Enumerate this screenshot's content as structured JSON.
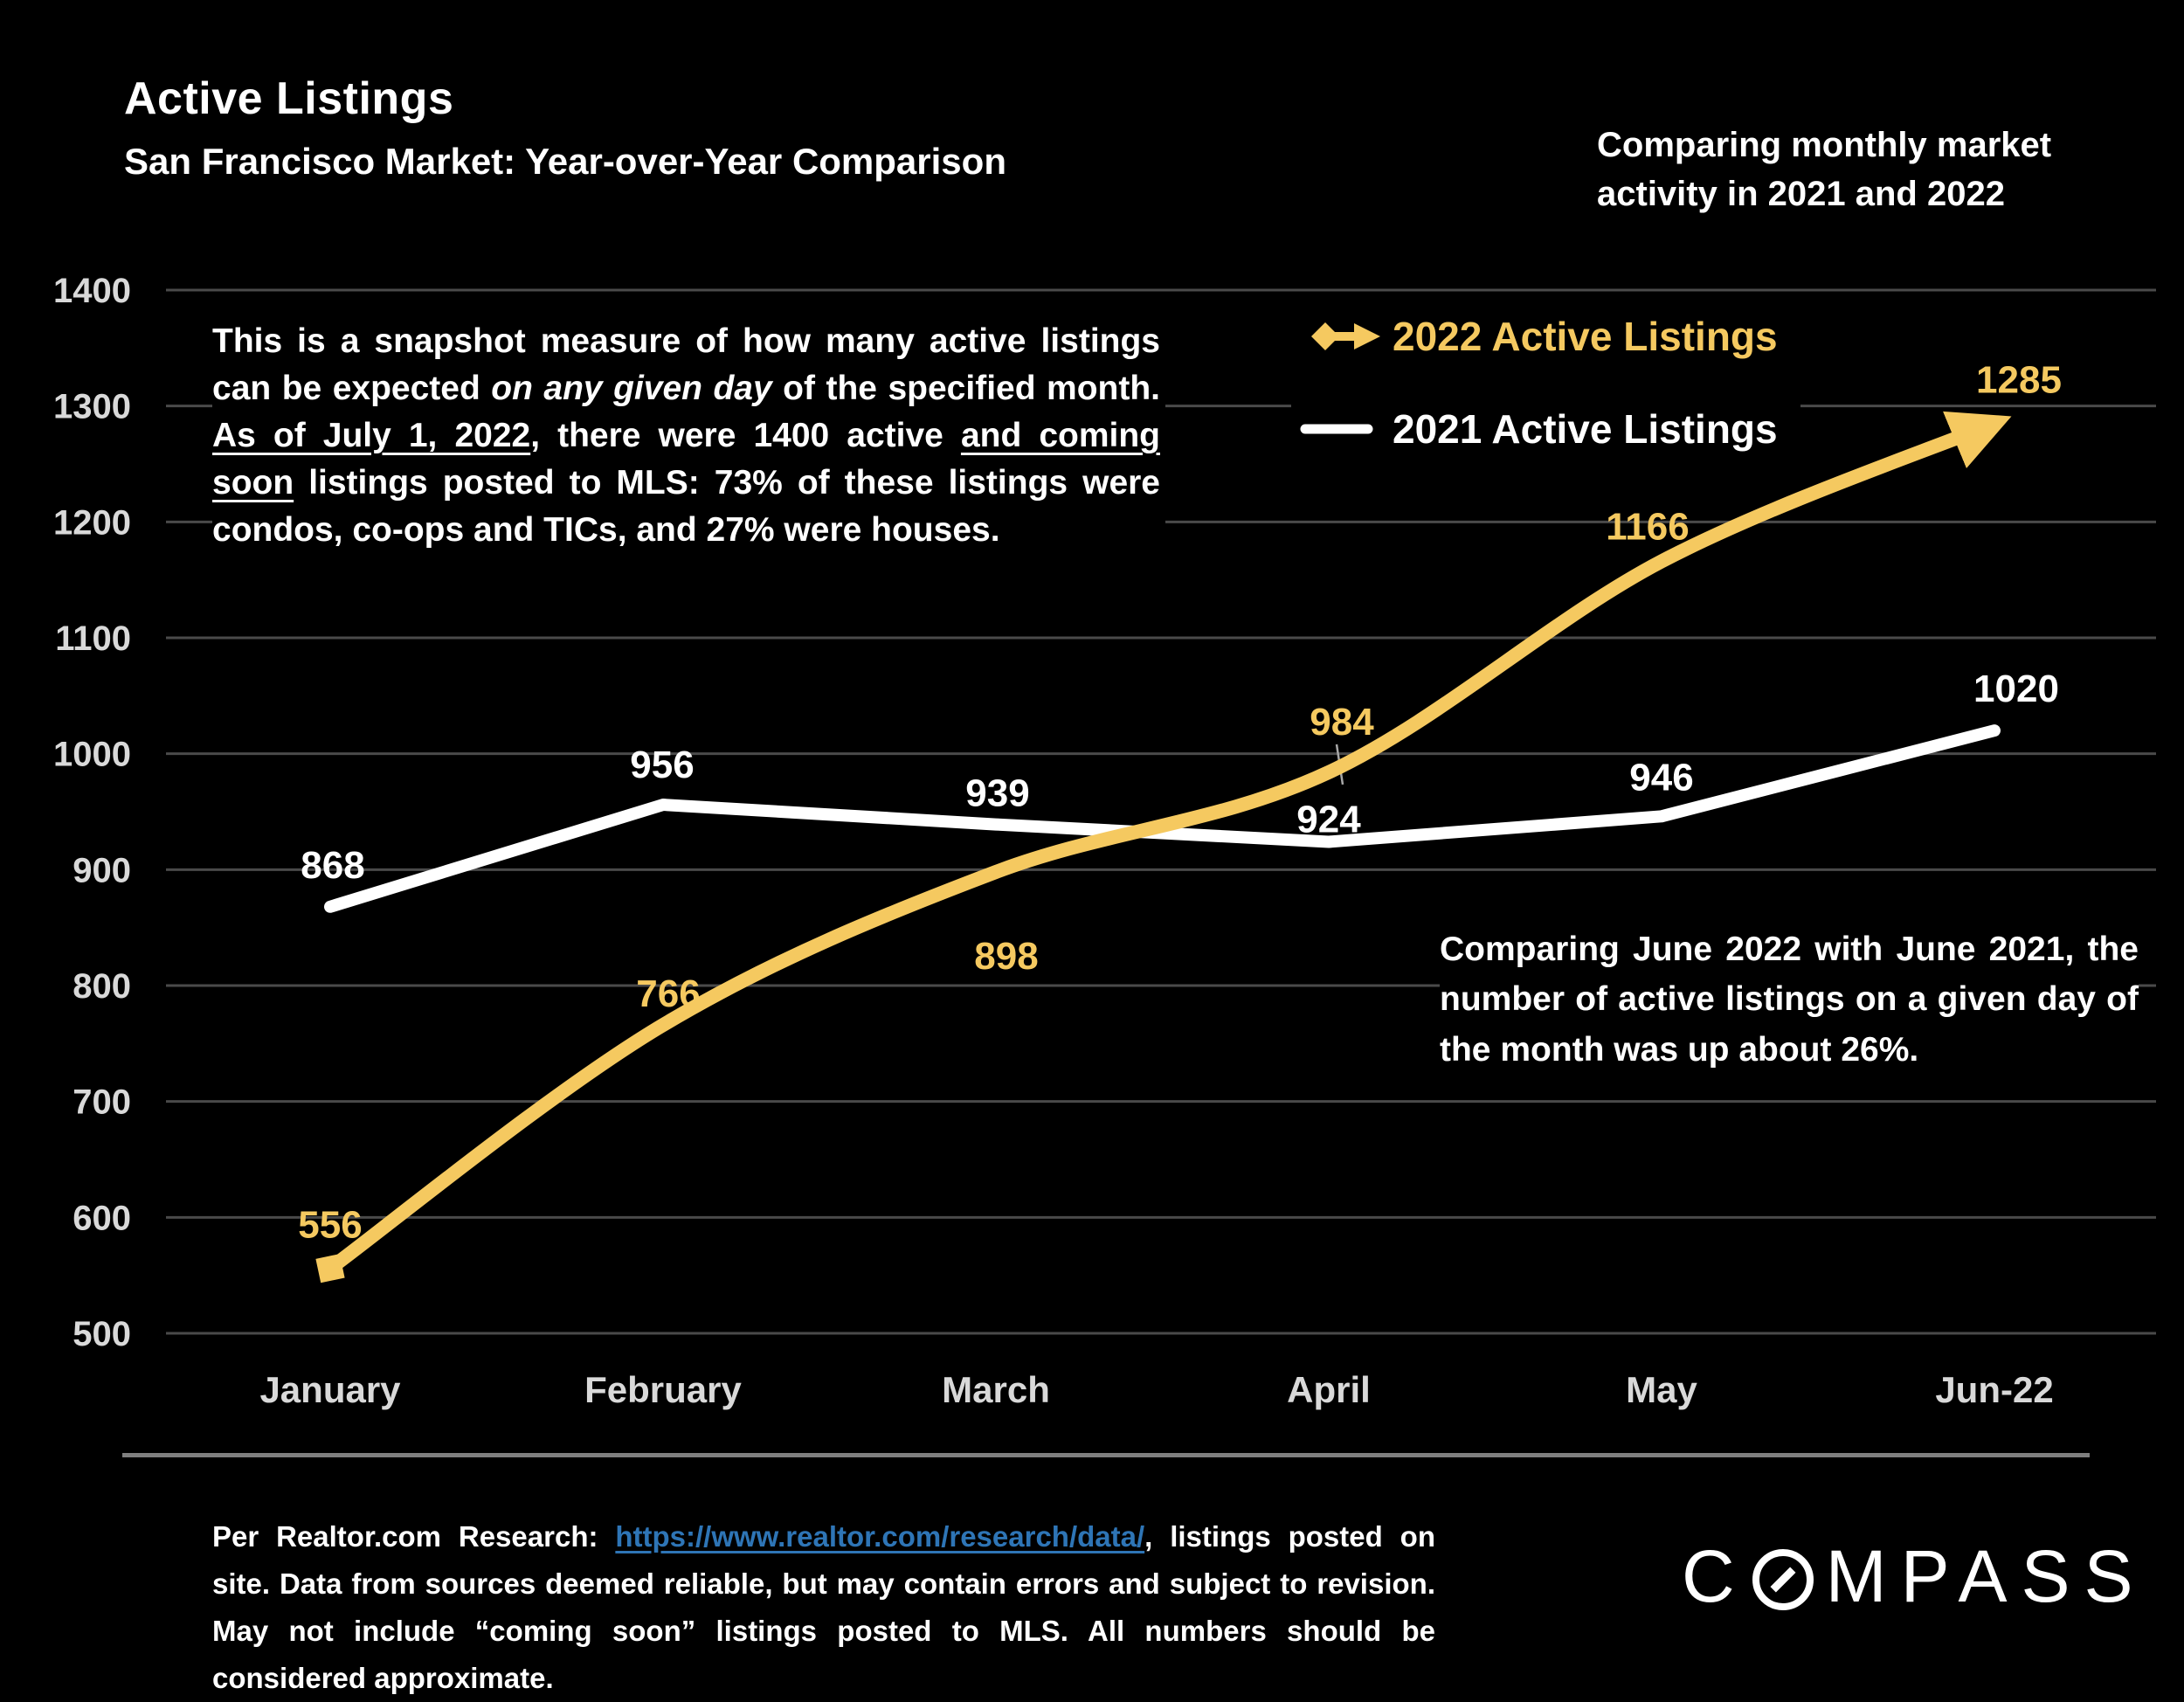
{
  "header": {
    "title": "Active Listings",
    "subtitle": "San Francisco Market: Year-over-Year Comparison",
    "tagline_line1": "Comparing monthly market",
    "tagline_line2": "activity in 2021 and 2022"
  },
  "annotations": {
    "snapshot_segments": [
      {
        "t": "This is a snapshot measure of how many active listings can be expected "
      },
      {
        "t": "on any given day",
        "style": "italic"
      },
      {
        "t": " of the specified month. "
      },
      {
        "t": "As of July 1, 2022",
        "style": "underline"
      },
      {
        "t": ", there were 1400 active "
      },
      {
        "t": "and coming soon",
        "style": "underline"
      },
      {
        "t": " listings posted to MLS: 73% of these listings were condos, co-ops and TICs, and 27% were houses."
      }
    ],
    "comparison": "Comparing June 2022 with June 2021, the number of active listings on a given day of the month was up about 26%."
  },
  "chart_data": {
    "type": "line",
    "title": "Active Listings",
    "subtitle": "San Francisco Market: Year-over-Year Comparison",
    "categories": [
      "January",
      "February",
      "March",
      "April",
      "May",
      "Jun-22"
    ],
    "series": [
      {
        "name": "2022 Active Listings",
        "values": [
          556,
          766,
          898,
          984,
          1166,
          1285
        ],
        "color": "#F5C960",
        "line_style": "curved",
        "end_arrow": true,
        "start_marker": "square"
      },
      {
        "name": "2021 Active Listings",
        "values": [
          868,
          956,
          939,
          924,
          946,
          1020
        ],
        "color": "#FFFFFF",
        "line_style": "straight"
      }
    ],
    "ylim": [
      500,
      1400
    ],
    "ytick_step": 100,
    "grid": true,
    "legend_position": "top-right",
    "label_offsets": [
      [
        [
          0,
          -50
        ],
        [
          6,
          -36
        ],
        [
          12,
          96
        ],
        [
          15,
          -58
        ],
        [
          -16,
          -40
        ],
        [
          28,
          -50
        ]
      ],
      [
        [
          3,
          -48
        ],
        [
          -1,
          -46
        ],
        [
          2,
          -36
        ],
        [
          0,
          -26
        ],
        [
          0,
          -45
        ],
        [
          25,
          -48
        ]
      ]
    ],
    "leader_line": {
      "series": 0,
      "index": 3
    }
  },
  "footer": {
    "segments": [
      {
        "t": "Per Realtor.com Research:  "
      },
      {
        "t": "https://www.realtor.com/research/data/",
        "style": "link"
      },
      {
        "t": ", listings posted on site. Data from sources deemed reliable, but may contain errors and subject to revision. May not include “coming soon” listings posted to MLS. All numbers should be considered approximate."
      }
    ]
  },
  "logo": {
    "prefix": "C",
    "suffix": "MPASS",
    "full": "COMPASS"
  },
  "theme": {
    "background": "#000000",
    "accent_gold": "#F5C960",
    "text_white": "#FFFFFF",
    "axis_label_gray": "#D9D9D9",
    "gridline_gray": "#4A4A4A",
    "divider_gray": "#7F7F7F",
    "link_blue": "#2E75B6"
  }
}
